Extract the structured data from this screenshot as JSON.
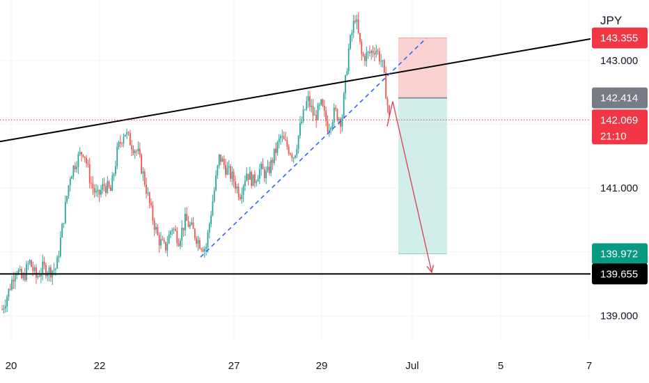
{
  "currency": "JPY",
  "colors": {
    "up": "#26a69a",
    "down": "#ef5350",
    "trendline": "#000000",
    "dashed": "#2962ff",
    "stop_zone": "#f8c9c9",
    "target_zone": "#c9ebe6",
    "entry_line": "#787b86",
    "projection": "#e0455a",
    "current_price": "#f23645"
  },
  "chart_data": {
    "type": "candlestick",
    "title": "",
    "xlabel": "",
    "ylabel": "",
    "ylim": [
      138.6,
      143.95
    ],
    "x_tick_labels": [
      "20",
      "22",
      "27",
      "29",
      "Jul",
      "5",
      "7"
    ],
    "y_tick_labels": [
      "143.000",
      "141.000",
      "139.000"
    ],
    "y_tick_values": [
      143.0,
      141.0,
      139.0
    ],
    "candles_close_path": [
      {
        "t": 0,
        "p": 139.1
      },
      {
        "t": 4,
        "p": 139.4
      },
      {
        "t": 8,
        "p": 139.75
      },
      {
        "t": 12,
        "p": 139.55
      },
      {
        "t": 16,
        "p": 139.85
      },
      {
        "t": 20,
        "p": 139.6
      },
      {
        "t": 24,
        "p": 139.75
      },
      {
        "t": 28,
        "p": 139.7
      },
      {
        "t": 32,
        "p": 139.75
      },
      {
        "t": 36,
        "p": 140.5
      },
      {
        "t": 40,
        "p": 141.2
      },
      {
        "t": 44,
        "p": 141.45
      },
      {
        "t": 48,
        "p": 141.6
      },
      {
        "t": 52,
        "p": 141.1
      },
      {
        "t": 56,
        "p": 140.85
      },
      {
        "t": 60,
        "p": 141.05
      },
      {
        "t": 64,
        "p": 140.95
      },
      {
        "t": 68,
        "p": 141.6
      },
      {
        "t": 72,
        "p": 141.9
      },
      {
        "t": 76,
        "p": 141.7
      },
      {
        "t": 80,
        "p": 141.55
      },
      {
        "t": 84,
        "p": 141.1
      },
      {
        "t": 88,
        "p": 140.6
      },
      {
        "t": 92,
        "p": 140.2
      },
      {
        "t": 96,
        "p": 140.05
      },
      {
        "t": 100,
        "p": 140.4
      },
      {
        "t": 104,
        "p": 140.2
      },
      {
        "t": 108,
        "p": 140.5
      },
      {
        "t": 112,
        "p": 140.35
      },
      {
        "t": 116,
        "p": 140.15
      },
      {
        "t": 120,
        "p": 140.05
      },
      {
        "t": 124,
        "p": 140.8
      },
      {
        "t": 128,
        "p": 141.5
      },
      {
        "t": 132,
        "p": 141.3
      },
      {
        "t": 136,
        "p": 141.15
      },
      {
        "t": 140,
        "p": 140.9
      },
      {
        "t": 144,
        "p": 141.25
      },
      {
        "t": 148,
        "p": 141.1
      },
      {
        "t": 152,
        "p": 141.3
      },
      {
        "t": 156,
        "p": 141.2
      },
      {
        "t": 160,
        "p": 141.5
      },
      {
        "t": 164,
        "p": 141.8
      },
      {
        "t": 168,
        "p": 141.65
      },
      {
        "t": 172,
        "p": 141.5
      },
      {
        "t": 176,
        "p": 142.0
      },
      {
        "t": 180,
        "p": 142.4
      },
      {
        "t": 184,
        "p": 142.1
      },
      {
        "t": 188,
        "p": 142.3
      },
      {
        "t": 192,
        "p": 141.95
      },
      {
        "t": 196,
        "p": 142.2
      },
      {
        "t": 200,
        "p": 142.05
      },
      {
        "t": 204,
        "p": 143.15
      },
      {
        "t": 208,
        "p": 143.7
      },
      {
        "t": 212,
        "p": 143.05
      },
      {
        "t": 216,
        "p": 143.1
      },
      {
        "t": 220,
        "p": 143.2
      },
      {
        "t": 224,
        "p": 142.95
      },
      {
        "t": 228,
        "p": 142.1
      }
    ],
    "annotations": {
      "upper_trendline": {
        "p_start": 141.73,
        "p_end": 143.34
      },
      "support_line": {
        "p": 139.655
      },
      "dashed_trendline": {
        "p_start": 139.92,
        "p_end": 143.35
      },
      "position": {
        "stop": 143.355,
        "entry": 142.414,
        "target": 139.972
      },
      "current_price": 142.069,
      "projection_arrow": {
        "p_start": 142.36,
        "p_end": 139.68
      }
    },
    "price_badges": [
      {
        "label": "143.355",
        "value": 143.355,
        "color": "#f23645"
      },
      {
        "label": "142.414",
        "value": 142.414,
        "color": "#787b86"
      },
      {
        "label": "142.069",
        "value": 142.069,
        "color": "#f23645",
        "sub": "21:10"
      },
      {
        "label": "139.972",
        "value": 139.972,
        "color": "#089981"
      },
      {
        "label": "139.655",
        "value": 139.655,
        "color": "#000000"
      }
    ]
  }
}
